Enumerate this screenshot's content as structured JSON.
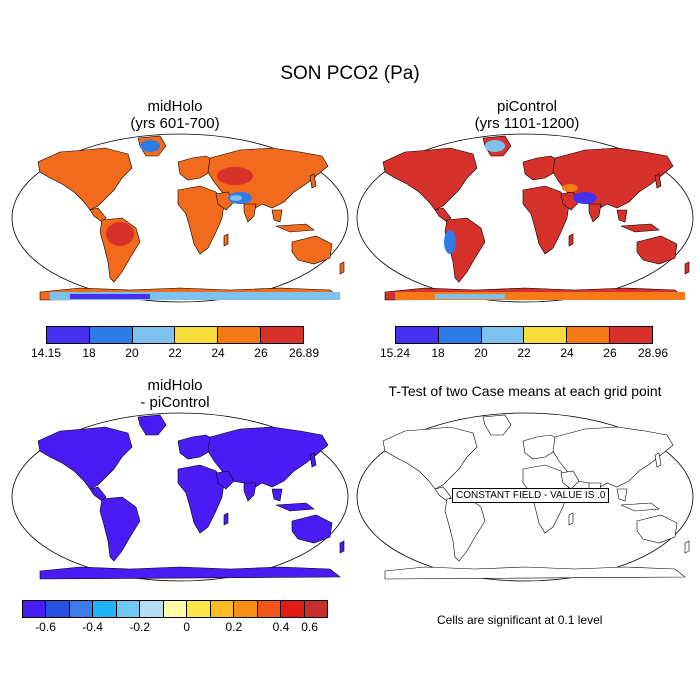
{
  "figure": {
    "title": "SON PCO2 (Pa)"
  },
  "panels": {
    "top_left": {
      "title_line1": "midHolo",
      "title_line2": "(yrs 601-700)",
      "colorbar": {
        "labels": [
          "14.15",
          "18",
          "20",
          "22",
          "24",
          "26",
          "26.89"
        ],
        "colors": [
          "#4830f0",
          "#2f7be8",
          "#7dc2ef",
          "#f7dc3a",
          "#f67a17",
          "#d9312c"
        ]
      }
    },
    "top_right": {
      "title_line1": "piControl",
      "title_line2": "(yrs 1101-1200)",
      "colorbar": {
        "labels": [
          "15.24",
          "18",
          "20",
          "22",
          "24",
          "26",
          "28.96"
        ],
        "colors": [
          "#4830f0",
          "#2f7be8",
          "#7dc2ef",
          "#f7dc3a",
          "#f67a17",
          "#d9312c"
        ]
      }
    },
    "bottom_left": {
      "title_line1": "midHolo",
      "title_line2": "- piControl",
      "colorbar": {
        "labels": [
          "-0.6",
          "-0.4",
          "-0.2",
          "0",
          "0.2",
          "0.4",
          "0.6"
        ],
        "colors": [
          "#4a1cf5",
          "#2a52e0",
          "#3b7ce8",
          "#21b2f5",
          "#6fc9f2",
          "#b3def5",
          "#fff9a8",
          "#fde64a",
          "#fbbb23",
          "#f68e15",
          "#f2541b",
          "#e11c14",
          "#c9302c"
        ]
      }
    },
    "bottom_right": {
      "title": "T-Test of two Case means at each grid point",
      "constant_field": "CONSTANT FIELD - VALUE IS .0",
      "note": "Cells are significant at 0.1 level"
    }
  },
  "map_fill": {
    "midholo_land": "#f26a1b",
    "picontrol_land": "#d7312c",
    "difference_land": "#4a1cf5",
    "ttest_land": "#ffffff"
  }
}
